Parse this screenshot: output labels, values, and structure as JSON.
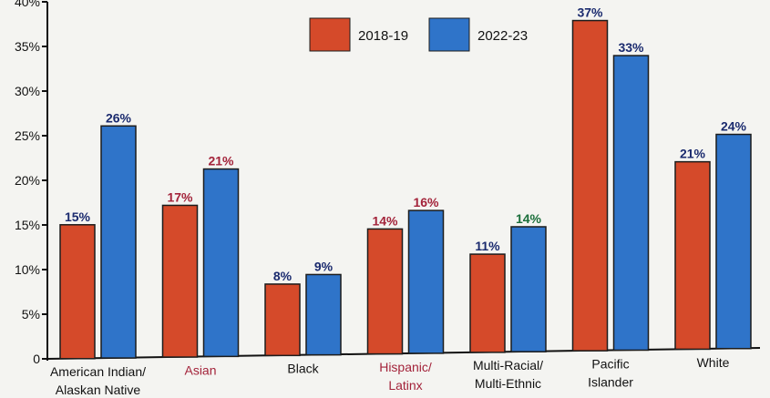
{
  "chart_data": {
    "type": "bar",
    "title": "",
    "xlabel": "",
    "ylabel": "",
    "ylim": [
      0,
      40
    ],
    "yticks": [
      {
        "value": 0,
        "label": "0"
      },
      {
        "value": 5,
        "label": "5%"
      },
      {
        "value": 10,
        "label": "10%"
      },
      {
        "value": 15,
        "label": "15%"
      },
      {
        "value": 20,
        "label": "20%"
      },
      {
        "value": 25,
        "label": "25%"
      },
      {
        "value": 30,
        "label": "30%"
      },
      {
        "value": 35,
        "label": "35%"
      },
      {
        "value": 40,
        "label": "40%"
      }
    ],
    "categories": [
      "American Indian/\nAlaskan Native",
      "Asian",
      "Black",
      "Hispanic/\nLatinx",
      "Multi-Racial/\nMulti-Ethnic",
      "Pacific\nIslander",
      "White"
    ],
    "category_colors": [
      "#111111",
      "#a3233a",
      "#111111",
      "#a3233a",
      "#111111",
      "#111111",
      "#111111"
    ],
    "series": [
      {
        "name": "2018-19",
        "color": "#d54a2a",
        "values": [
          15,
          17,
          8,
          14,
          11,
          37,
          21
        ],
        "labels": [
          "15%",
          "17%",
          "8%",
          "14%",
          "11%",
          "37%",
          "21%"
        ],
        "label_colors": [
          "#1a2a6e",
          "#a3233a",
          "#1a2a6e",
          "#a3233a",
          "#1a2a6e",
          "#1a2a6e",
          "#1a2a6e"
        ]
      },
      {
        "name": "2022-23",
        "color": "#2f74c9",
        "values": [
          26,
          21,
          9,
          16,
          14,
          33,
          24
        ],
        "labels": [
          "26%",
          "21%",
          "9%",
          "16%",
          "14%",
          "33%",
          "24%"
        ],
        "label_colors": [
          "#1a2a6e",
          "#a3233a",
          "#1a2a6e",
          "#a3233a",
          "#1a6e3a",
          "#1a2a6e",
          "#1a2a6e"
        ]
      }
    ],
    "legend": {
      "position": "top-center",
      "entries": [
        "2018-19",
        "2022-23"
      ]
    },
    "grid": false
  }
}
